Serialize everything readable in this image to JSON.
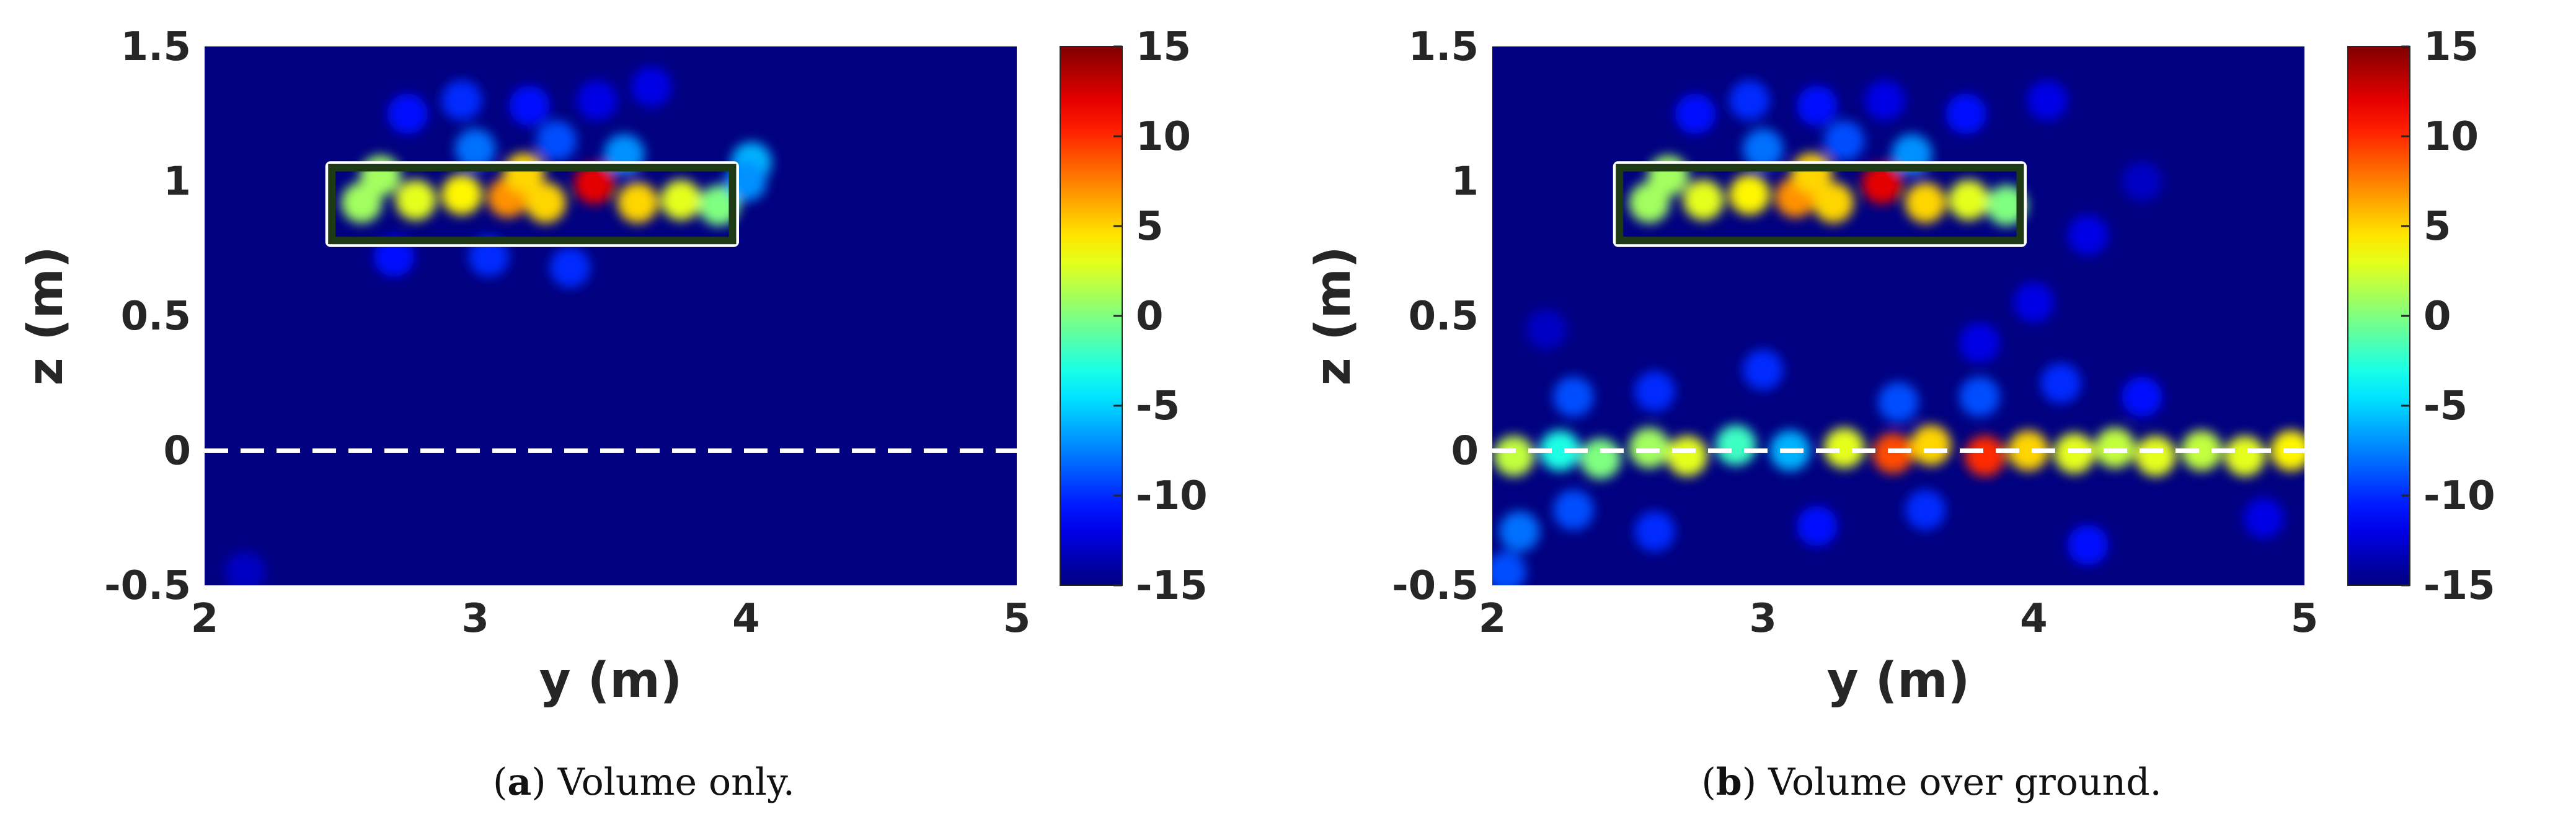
{
  "chart_data": [
    {
      "type": "heatmap",
      "caption": {
        "tag": "a",
        "text": "Volume only."
      },
      "xlabel": "y (m)",
      "ylabel": "z (m)",
      "xlim": [
        2,
        5
      ],
      "ylim": [
        -0.5,
        1.5
      ],
      "xticks": [
        "2",
        "3",
        "4",
        "5"
      ],
      "yticks": [
        "-0.5",
        "0",
        "0.5",
        "1",
        "1.5"
      ],
      "colorbar": {
        "range": [
          -15,
          15
        ],
        "ticks": [
          "-15",
          "-10",
          "-5",
          "0",
          "5",
          "10",
          "15"
        ],
        "colormap": "jet"
      },
      "background_level": -15,
      "target_box": {
        "y": [
          2.47,
          3.95
        ],
        "z": [
          0.78,
          1.05
        ]
      },
      "ground_line_z": 0,
      "blobs": [
        {
          "y": 2.58,
          "z": 0.92,
          "level": 1
        },
        {
          "y": 2.78,
          "z": 0.93,
          "level": 3
        },
        {
          "y": 2.95,
          "z": 0.95,
          "level": 4
        },
        {
          "y": 3.12,
          "z": 0.94,
          "level": 7
        },
        {
          "y": 3.26,
          "z": 0.92,
          "level": 5
        },
        {
          "y": 3.44,
          "z": 0.99,
          "level": 12
        },
        {
          "y": 3.6,
          "z": 0.92,
          "level": 5
        },
        {
          "y": 3.76,
          "z": 0.93,
          "level": 3
        },
        {
          "y": 3.9,
          "z": 0.91,
          "level": 0
        },
        {
          "y": 2.65,
          "z": 1.02,
          "level": 1
        },
        {
          "y": 3.18,
          "z": 1.03,
          "level": 5
        },
        {
          "y": 3.0,
          "z": 1.12,
          "level": -8
        },
        {
          "y": 3.3,
          "z": 1.15,
          "level": -9
        },
        {
          "y": 3.55,
          "z": 1.1,
          "level": -7
        },
        {
          "y": 4.02,
          "z": 1.07,
          "level": -6
        },
        {
          "y": 4.0,
          "z": 1.0,
          "level": -7
        },
        {
          "y": 2.75,
          "z": 1.25,
          "level": -11
        },
        {
          "y": 2.95,
          "z": 1.3,
          "level": -10
        },
        {
          "y": 3.2,
          "z": 1.28,
          "level": -11
        },
        {
          "y": 3.45,
          "z": 1.3,
          "level": -12
        },
        {
          "y": 3.65,
          "z": 1.35,
          "level": -12
        },
        {
          "y": 3.35,
          "z": 0.68,
          "level": -10
        },
        {
          "y": 2.7,
          "z": 0.72,
          "level": -11
        },
        {
          "y": 3.05,
          "z": 0.72,
          "level": -10
        },
        {
          "y": 2.15,
          "z": -0.45,
          "level": -13
        }
      ]
    },
    {
      "type": "heatmap",
      "caption": {
        "tag": "b",
        "text": "Volume over ground."
      },
      "xlabel": "y (m)",
      "ylabel": "z (m)",
      "xlim": [
        2,
        5
      ],
      "ylim": [
        -0.5,
        1.5
      ],
      "xticks": [
        "2",
        "3",
        "4",
        "5"
      ],
      "yticks": [
        "-0.5",
        "0",
        "0.5",
        "1",
        "1.5"
      ],
      "colorbar": {
        "range": [
          -15,
          15
        ],
        "ticks": [
          "-15",
          "-10",
          "-5",
          "0",
          "5",
          "10",
          "15"
        ],
        "colormap": "jet"
      },
      "background_level": -15,
      "target_box": {
        "y": [
          2.47,
          3.95
        ],
        "z": [
          0.78,
          1.05
        ]
      },
      "ground_line_z": 0,
      "blobs": [
        {
          "y": 2.58,
          "z": 0.92,
          "level": 1
        },
        {
          "y": 2.78,
          "z": 0.93,
          "level": 3
        },
        {
          "y": 2.95,
          "z": 0.95,
          "level": 4
        },
        {
          "y": 3.12,
          "z": 0.94,
          "level": 7
        },
        {
          "y": 3.26,
          "z": 0.92,
          "level": 5
        },
        {
          "y": 3.44,
          "z": 0.99,
          "level": 12
        },
        {
          "y": 3.6,
          "z": 0.92,
          "level": 5
        },
        {
          "y": 3.76,
          "z": 0.93,
          "level": 3
        },
        {
          "y": 3.9,
          "z": 0.91,
          "level": 0
        },
        {
          "y": 2.65,
          "z": 1.02,
          "level": 1
        },
        {
          "y": 3.18,
          "z": 1.03,
          "level": 5
        },
        {
          "y": 3.0,
          "z": 1.12,
          "level": -8
        },
        {
          "y": 3.3,
          "z": 1.15,
          "level": -9
        },
        {
          "y": 3.55,
          "z": 1.1,
          "level": -7
        },
        {
          "y": 2.75,
          "z": 1.25,
          "level": -11
        },
        {
          "y": 2.95,
          "z": 1.3,
          "level": -10
        },
        {
          "y": 3.2,
          "z": 1.28,
          "level": -11
        },
        {
          "y": 3.45,
          "z": 1.3,
          "level": -12
        },
        {
          "y": 3.75,
          "z": 1.25,
          "level": -11
        },
        {
          "y": 4.05,
          "z": 1.3,
          "level": -12
        },
        {
          "y": 2.08,
          "z": -0.02,
          "level": 2
        },
        {
          "y": 2.25,
          "z": 0.0,
          "level": -3
        },
        {
          "y": 2.4,
          "z": -0.03,
          "level": 0
        },
        {
          "y": 2.58,
          "z": 0.01,
          "level": 1
        },
        {
          "y": 2.72,
          "z": -0.02,
          "level": 3
        },
        {
          "y": 2.9,
          "z": 0.02,
          "level": -2
        },
        {
          "y": 3.1,
          "z": 0.0,
          "level": -6
        },
        {
          "y": 3.3,
          "z": 0.01,
          "level": 3
        },
        {
          "y": 3.48,
          "z": -0.01,
          "level": 9
        },
        {
          "y": 3.62,
          "z": 0.02,
          "level": 5
        },
        {
          "y": 3.82,
          "z": -0.02,
          "level": 10
        },
        {
          "y": 3.98,
          "z": 0.0,
          "level": 5
        },
        {
          "y": 4.15,
          "z": -0.01,
          "level": 3
        },
        {
          "y": 4.3,
          "z": 0.01,
          "level": 2
        },
        {
          "y": 4.45,
          "z": -0.02,
          "level": 3
        },
        {
          "y": 4.62,
          "z": 0.0,
          "level": 2
        },
        {
          "y": 4.78,
          "z": -0.02,
          "level": 3
        },
        {
          "y": 4.95,
          "z": 0.0,
          "level": 4
        },
        {
          "y": 2.3,
          "z": 0.2,
          "level": -9
        },
        {
          "y": 2.6,
          "z": 0.22,
          "level": -10
        },
        {
          "y": 3.5,
          "z": 0.18,
          "level": -9
        },
        {
          "y": 3.8,
          "z": 0.2,
          "level": -9
        },
        {
          "y": 4.1,
          "z": 0.25,
          "level": -10
        },
        {
          "y": 4.4,
          "z": 0.2,
          "level": -11
        },
        {
          "y": 3.0,
          "z": 0.3,
          "level": -10
        },
        {
          "y": 2.1,
          "z": -0.3,
          "level": -8
        },
        {
          "y": 2.3,
          "z": -0.22,
          "level": -9
        },
        {
          "y": 2.05,
          "z": -0.45,
          "level": -9
        },
        {
          "y": 2.6,
          "z": -0.3,
          "level": -10
        },
        {
          "y": 3.2,
          "z": -0.28,
          "level": -11
        },
        {
          "y": 3.6,
          "z": -0.22,
          "level": -10
        },
        {
          "y": 4.2,
          "z": -0.35,
          "level": -11
        },
        {
          "y": 4.85,
          "z": -0.25,
          "level": -12
        },
        {
          "y": 4.0,
          "z": 0.55,
          "level": -12
        },
        {
          "y": 4.2,
          "z": 0.8,
          "level": -12
        },
        {
          "y": 4.4,
          "z": 1.0,
          "level": -13
        },
        {
          "y": 3.8,
          "z": 0.4,
          "level": -12
        },
        {
          "y": 2.2,
          "z": 0.45,
          "level": -13
        }
      ]
    }
  ]
}
